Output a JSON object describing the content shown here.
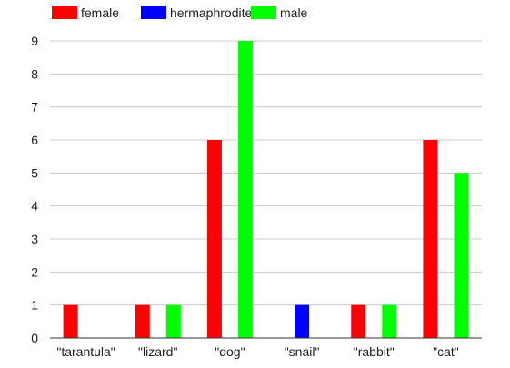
{
  "chart_data": {
    "type": "bar",
    "categories": [
      "\"tarantula\"",
      "\"lizard\"",
      "\"dog\"",
      "\"snail\"",
      "\"rabbit\"",
      "\"cat\""
    ],
    "series": [
      {
        "name": "female",
        "color": "#ff0000",
        "values": [
          1,
          1,
          6,
          0,
          1,
          6
        ]
      },
      {
        "name": "hermaphrodite",
        "color": "#0000ff",
        "values": [
          0,
          0,
          0,
          1,
          0,
          0
        ]
      },
      {
        "name": "male",
        "color": "#00ff00",
        "values": [
          0,
          1,
          9,
          0,
          1,
          5
        ]
      }
    ],
    "ylim": [
      0,
      9
    ],
    "yticks": [
      0,
      1,
      2,
      3,
      4,
      5,
      6,
      7,
      8,
      9
    ],
    "grid": true,
    "legend_position": "top-left",
    "title": "",
    "xlabel": "",
    "ylabel": ""
  }
}
